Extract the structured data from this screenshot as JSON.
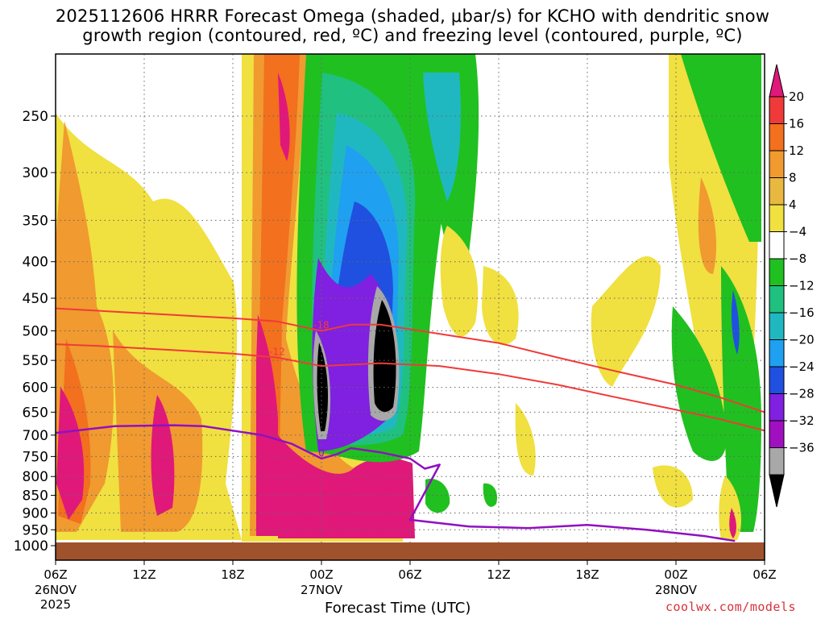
{
  "title": {
    "line1": "2025112606 HRRR Forecast Omega (shaded, μbar/s) for KCHO with dendritic snow",
    "line2": "growth region (contoured, red, ºC) and freezing level (contoured, purple, ºC)"
  },
  "xlabel": "Forecast Time (UTC)",
  "credit": "coolwx.com/models",
  "chart_data": {
    "type": "heatmap",
    "title": "2025112606 HRRR Forecast Omega (shaded, μbar/s) for KCHO with dendritic snow growth region (contoured, red, ºC) and freezing level (contoured, purple, ºC)",
    "xlabel": "Forecast Time (UTC)",
    "ylabel": "Pressure (hPa)",
    "x_range_hours": [
      0,
      48
    ],
    "y_range_hpa": [
      200,
      1030
    ],
    "y_ticks": [
      250,
      300,
      350,
      400,
      450,
      500,
      550,
      600,
      650,
      700,
      750,
      800,
      850,
      900,
      950,
      1000
    ],
    "x_ticks": [
      {
        "hour": 0,
        "label": "06Z",
        "date": "26NOV",
        "year": "2025"
      },
      {
        "hour": 6,
        "label": "12Z",
        "date": "",
        "year": ""
      },
      {
        "hour": 12,
        "label": "18Z",
        "date": "",
        "year": ""
      },
      {
        "hour": 18,
        "label": "00Z",
        "date": "27NOV",
        "year": ""
      },
      {
        "hour": 24,
        "label": "06Z",
        "date": "",
        "year": ""
      },
      {
        "hour": 30,
        "label": "12Z",
        "date": "",
        "year": ""
      },
      {
        "hour": 36,
        "label": "18Z",
        "date": "",
        "year": ""
      },
      {
        "hour": 42,
        "label": "00Z",
        "date": "28NOV",
        "year": ""
      },
      {
        "hour": 48,
        "label": "06Z",
        "date": "",
        "year": ""
      }
    ],
    "colorbar": {
      "levels": [
        "20",
        "16",
        "12",
        "8",
        "4",
        "−4",
        "−8",
        "−12",
        "−16",
        "−20",
        "−24",
        "−28",
        "−32",
        "−36"
      ],
      "colors": [
        "#e0187a",
        "#f03a3a",
        "#f2701e",
        "#f09a30",
        "#e8b840",
        "#f0e040",
        "#ffffff",
        "#20c020",
        "#20c080",
        "#20b8c0",
        "#20a0f0",
        "#2050e0",
        "#8020e0",
        "#a010c0",
        "#a8a8a8",
        "#000000"
      ]
    },
    "contours": {
      "dgz_red": [
        {
          "label": "-12",
          "points": [
            [
              0,
              522
            ],
            [
              3,
              525
            ],
            [
              8,
              532
            ],
            [
              12,
              538
            ],
            [
              15,
              545
            ],
            [
              18,
              560
            ],
            [
              22,
              555
            ],
            [
              26,
              560
            ],
            [
              30,
              575
            ],
            [
              34,
              595
            ],
            [
              38,
              620
            ],
            [
              42,
              645
            ],
            [
              45,
              665
            ],
            [
              48,
              690
            ]
          ]
        },
        {
          "label": "-18",
          "points": [
            [
              0,
              465
            ],
            [
              4,
              470
            ],
            [
              8,
              475
            ],
            [
              12,
              480
            ],
            [
              15,
              485
            ],
            [
              18,
              500
            ],
            [
              20,
              490
            ],
            [
              22,
              490
            ],
            [
              26,
              505
            ],
            [
              30,
              520
            ],
            [
              34,
              545
            ],
            [
              38,
              570
            ],
            [
              42,
              595
            ],
            [
              45,
              620
            ],
            [
              48,
              650
            ]
          ]
        }
      ],
      "freezing_purple": [
        {
          "label": "0",
          "points": [
            [
              0,
              695
            ],
            [
              4,
              680
            ],
            [
              8,
              678
            ],
            [
              10,
              680
            ],
            [
              12,
              690
            ],
            [
              14,
              700
            ],
            [
              16,
              720
            ],
            [
              18,
              755
            ],
            [
              19,
              745
            ],
            [
              20,
              730
            ],
            [
              22,
              740
            ],
            [
              24,
              755
            ],
            [
              25,
              780
            ],
            [
              26,
              770
            ],
            [
              24,
              920
            ],
            [
              28,
              940
            ],
            [
              32,
              945
            ],
            [
              36,
              935
            ],
            [
              40,
              950
            ],
            [
              44,
              970
            ],
            [
              46,
              985
            ]
          ]
        }
      ]
    }
  }
}
